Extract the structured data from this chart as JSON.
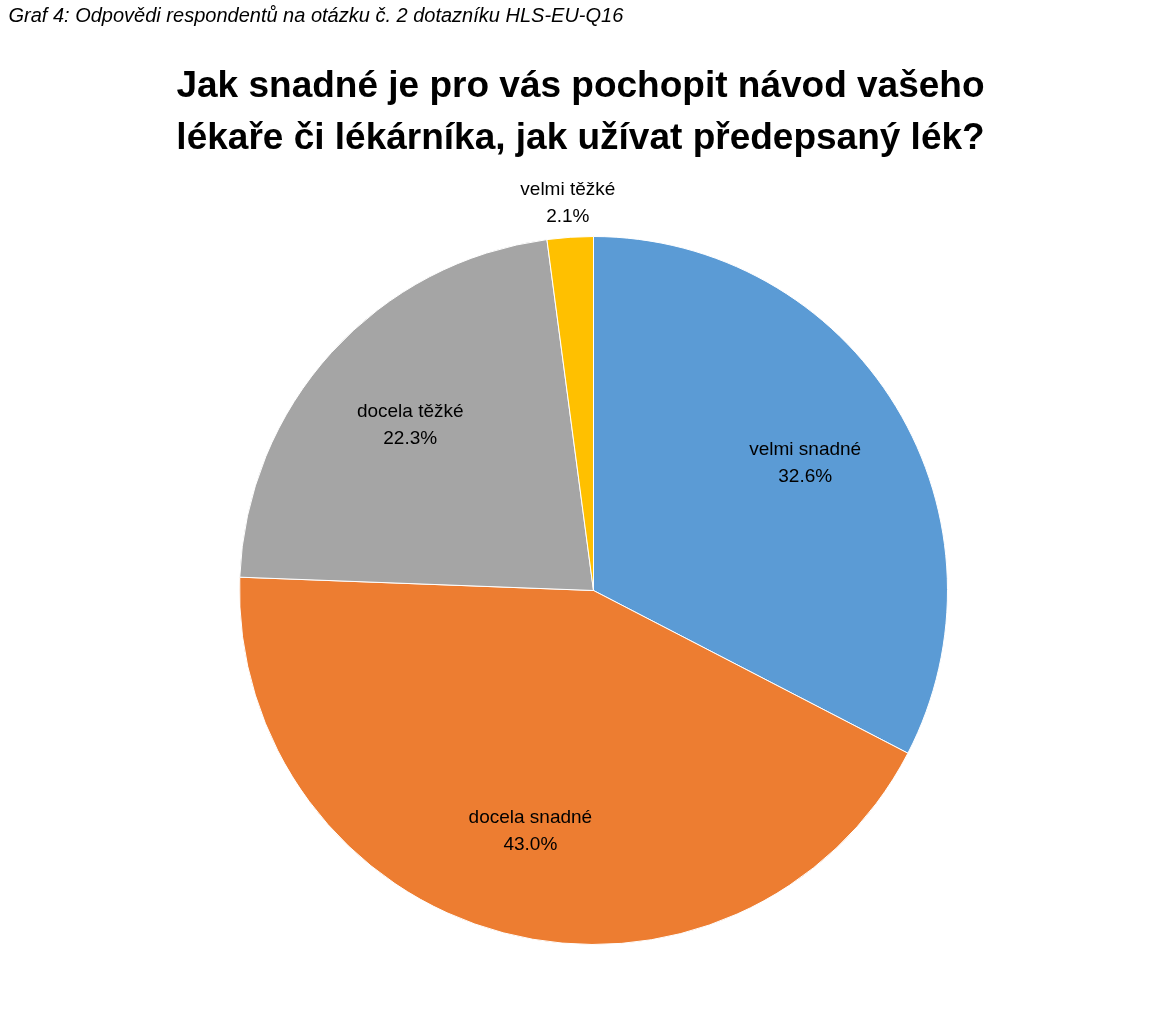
{
  "chart_data": {
    "type": "pie",
    "title": "Jak snadné je pro vás pochopit návod vašeho lékaře či lékárníka, jak užívat předepsaný lék?",
    "annotations": [
      "Graf 4: Odpovědi respondentů na otázku č. 2 dotazníku HLS-EU-Q16"
    ],
    "categories": [
      "velmi snadné",
      "docela snadné",
      "docela těžké",
      "velmi těžké"
    ],
    "values": [
      32.6,
      43.0,
      22.3,
      2.1
    ],
    "value_labels": [
      "32.6%",
      "43.0%",
      "22.3%",
      "2.1%"
    ],
    "colors": [
      "#5b9bd5",
      "#ed7d31",
      "#a5a5a5",
      "#ffc000"
    ],
    "legend": false
  }
}
